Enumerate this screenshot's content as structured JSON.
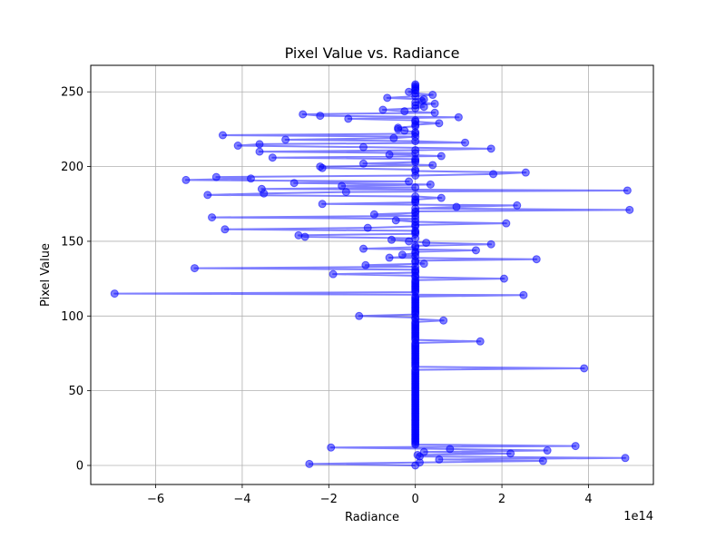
{
  "chart_data": {
    "type": "line",
    "title": "Pixel Value vs. Radiance",
    "xlabel": "Radiance",
    "ylabel": "Pixel Value",
    "x_offset_label": "1e14",
    "x_scale": 100000000000000.0,
    "xlim": [
      -7.5,
      5.5
    ],
    "ylim": [
      -12.75,
      267.75
    ],
    "x_ticks": [
      -6,
      -4,
      -2,
      0,
      2,
      4
    ],
    "x_tick_labels": [
      "−6",
      "−4",
      "−2",
      "0",
      "2",
      "4"
    ],
    "y_ticks": [
      0,
      50,
      100,
      150,
      200,
      250
    ],
    "y_tick_labels": [
      "0",
      "50",
      "100",
      "150",
      "200",
      "250"
    ],
    "grid": true,
    "legend": "none",
    "series": [
      {
        "color": "#0000ff",
        "marker": "circle",
        "points": [
          [
            0.0,
            0
          ],
          [
            -2.45,
            1
          ],
          [
            0.1,
            2
          ],
          [
            2.95,
            3
          ],
          [
            0.55,
            4
          ],
          [
            4.85,
            5
          ],
          [
            0.1,
            6
          ],
          [
            0.05,
            7
          ],
          [
            2.2,
            8
          ],
          [
            0.2,
            9
          ],
          [
            3.05,
            10
          ],
          [
            0.8,
            11
          ],
          [
            -1.95,
            12
          ],
          [
            3.7,
            13
          ],
          [
            0.0,
            14
          ],
          [
            0.0,
            15
          ],
          [
            0.0,
            16
          ],
          [
            0.0,
            17
          ],
          [
            0.0,
            18
          ],
          [
            0.0,
            19
          ],
          [
            0.0,
            20
          ],
          [
            0.0,
            21
          ],
          [
            0.0,
            22
          ],
          [
            0.0,
            23
          ],
          [
            0.0,
            24
          ],
          [
            0.0,
            25
          ],
          [
            0.0,
            26
          ],
          [
            0.0,
            27
          ],
          [
            0.0,
            28
          ],
          [
            0.0,
            29
          ],
          [
            0.0,
            30
          ],
          [
            0.0,
            31
          ],
          [
            0.0,
            32
          ],
          [
            0.0,
            33
          ],
          [
            0.0,
            34
          ],
          [
            0.0,
            35
          ],
          [
            0.0,
            36
          ],
          [
            0.0,
            37
          ],
          [
            0.0,
            38
          ],
          [
            0.0,
            39
          ],
          [
            0.0,
            40
          ],
          [
            0.0,
            41
          ],
          [
            0.0,
            42
          ],
          [
            0.0,
            43
          ],
          [
            0.0,
            44
          ],
          [
            0.0,
            45
          ],
          [
            0.0,
            46
          ],
          [
            0.0,
            47
          ],
          [
            0.0,
            48
          ],
          [
            0.0,
            49
          ],
          [
            0.0,
            50
          ],
          [
            0.0,
            51
          ],
          [
            0.0,
            52
          ],
          [
            0.0,
            53
          ],
          [
            0.0,
            54
          ],
          [
            0.0,
            55
          ],
          [
            0.0,
            56
          ],
          [
            0.0,
            57
          ],
          [
            0.0,
            58
          ],
          [
            0.0,
            59
          ],
          [
            0.0,
            60
          ],
          [
            0.0,
            61
          ],
          [
            0.0,
            62
          ],
          [
            0.0,
            63
          ],
          [
            0.0,
            64
          ],
          [
            3.9,
            65
          ],
          [
            0.0,
            66
          ],
          [
            0.0,
            67
          ],
          [
            0.0,
            68
          ],
          [
            0.0,
            69
          ],
          [
            0.0,
            70
          ],
          [
            0.0,
            71
          ],
          [
            0.0,
            72
          ],
          [
            0.0,
            73
          ],
          [
            0.0,
            74
          ],
          [
            0.0,
            75
          ],
          [
            0.0,
            76
          ],
          [
            0.0,
            77
          ],
          [
            0.0,
            78
          ],
          [
            0.0,
            79
          ],
          [
            0.0,
            80
          ],
          [
            0.0,
            81
          ],
          [
            0.0,
            82
          ],
          [
            1.5,
            83
          ],
          [
            0.0,
            84
          ],
          [
            0.0,
            85
          ],
          [
            0.0,
            86
          ],
          [
            0.0,
            87
          ],
          [
            0.0,
            88
          ],
          [
            0.0,
            89
          ],
          [
            0.0,
            90
          ],
          [
            0.0,
            91
          ],
          [
            0.0,
            92
          ],
          [
            0.0,
            93
          ],
          [
            0.0,
            94
          ],
          [
            0.0,
            95
          ],
          [
            0.0,
            96
          ],
          [
            0.65,
            97
          ],
          [
            0.0,
            98
          ],
          [
            0.0,
            99
          ],
          [
            -1.3,
            100
          ],
          [
            0.0,
            101
          ],
          [
            0.0,
            102
          ],
          [
            0.0,
            103
          ],
          [
            0.0,
            104
          ],
          [
            0.0,
            105
          ],
          [
            0.0,
            106
          ],
          [
            0.0,
            107
          ],
          [
            0.0,
            108
          ],
          [
            0.0,
            109
          ],
          [
            0.0,
            110
          ],
          [
            0.0,
            111
          ],
          [
            0.0,
            112
          ],
          [
            0.0,
            113
          ],
          [
            2.5,
            114
          ],
          [
            -6.95,
            115
          ],
          [
            0.0,
            116
          ],
          [
            0.0,
            117
          ],
          [
            0.0,
            118
          ],
          [
            0.0,
            119
          ],
          [
            0.0,
            120
          ],
          [
            0.0,
            121
          ],
          [
            0.0,
            122
          ],
          [
            0.0,
            123
          ],
          [
            0.0,
            124
          ],
          [
            2.05,
            125
          ],
          [
            0.0,
            126
          ],
          [
            0.0,
            127
          ],
          [
            -1.9,
            128
          ],
          [
            0.0,
            129
          ],
          [
            0.0,
            130
          ],
          [
            0.0,
            131
          ],
          [
            -5.1,
            132
          ],
          [
            0.0,
            133
          ],
          [
            -1.15,
            134
          ],
          [
            0.2,
            135
          ],
          [
            0.0,
            136
          ],
          [
            0.0,
            137
          ],
          [
            2.8,
            138
          ],
          [
            -0.6,
            139
          ],
          [
            0.0,
            140
          ],
          [
            -0.3,
            141
          ],
          [
            0.0,
            142
          ],
          [
            0.0,
            143
          ],
          [
            1.4,
            144
          ],
          [
            -1.2,
            145
          ],
          [
            0.0,
            146
          ],
          [
            0.0,
            147
          ],
          [
            1.75,
            148
          ],
          [
            0.25,
            149
          ],
          [
            -0.15,
            150
          ],
          [
            -0.55,
            151
          ],
          [
            0.0,
            152
          ],
          [
            -2.55,
            153
          ],
          [
            -2.7,
            154
          ],
          [
            0.0,
            155
          ],
          [
            0.0,
            156
          ],
          [
            0.0,
            157
          ],
          [
            -4.4,
            158
          ],
          [
            -1.1,
            159
          ],
          [
            0.0,
            160
          ],
          [
            0.0,
            161
          ],
          [
            2.1,
            162
          ],
          [
            0.0,
            163
          ],
          [
            -0.45,
            164
          ],
          [
            0.0,
            165
          ],
          [
            -4.7,
            166
          ],
          [
            0.0,
            167
          ],
          [
            -0.95,
            168
          ],
          [
            0.0,
            169
          ],
          [
            0.0,
            170
          ],
          [
            4.95,
            171
          ],
          [
            0.0,
            172
          ],
          [
            0.95,
            173
          ],
          [
            2.35,
            174
          ],
          [
            -2.15,
            175
          ],
          [
            0.0,
            176
          ],
          [
            0.0,
            177
          ],
          [
            0.0,
            178
          ],
          [
            0.6,
            179
          ],
          [
            0.0,
            180
          ],
          [
            -4.8,
            181
          ],
          [
            -3.5,
            182
          ],
          [
            -1.6,
            183
          ],
          [
            4.9,
            184
          ],
          [
            -3.55,
            185
          ],
          [
            0.0,
            186
          ],
          [
            -1.7,
            187
          ],
          [
            0.35,
            188
          ],
          [
            -2.8,
            189
          ],
          [
            -0.15,
            190
          ],
          [
            -5.3,
            191
          ],
          [
            -3.8,
            192
          ],
          [
            -4.6,
            193
          ],
          [
            0.0,
            194
          ],
          [
            1.8,
            195
          ],
          [
            2.55,
            196
          ],
          [
            0.0,
            197
          ],
          [
            0.0,
            198
          ],
          [
            -2.15,
            199
          ],
          [
            -2.2,
            200
          ],
          [
            0.4,
            201
          ],
          [
            -1.2,
            202
          ],
          [
            0.0,
            203
          ],
          [
            0.0,
            204
          ],
          [
            0.0,
            205
          ],
          [
            -3.3,
            206
          ],
          [
            0.6,
            207
          ],
          [
            -0.6,
            208
          ],
          [
            0.0,
            209
          ],
          [
            -3.6,
            210
          ],
          [
            0.0,
            211
          ],
          [
            1.75,
            212
          ],
          [
            -1.2,
            213
          ],
          [
            -4.1,
            214
          ],
          [
            -3.6,
            215
          ],
          [
            1.15,
            216
          ],
          [
            0.0,
            217
          ],
          [
            -3.0,
            218
          ],
          [
            -0.5,
            219
          ],
          [
            0.0,
            220
          ],
          [
            -4.45,
            221
          ],
          [
            0.0,
            222
          ],
          [
            0.0,
            223
          ],
          [
            -0.25,
            224
          ],
          [
            -0.4,
            225
          ],
          [
            -0.4,
            226
          ],
          [
            0.0,
            227
          ],
          [
            0.0,
            228
          ],
          [
            0.55,
            229
          ],
          [
            0.0,
            230
          ],
          [
            0.0,
            231
          ],
          [
            -1.55,
            232
          ],
          [
            1.0,
            233
          ],
          [
            -2.2,
            234
          ],
          [
            -2.6,
            235
          ],
          [
            0.45,
            236
          ],
          [
            -0.25,
            237
          ],
          [
            -0.75,
            238
          ],
          [
            0.0,
            239
          ],
          [
            0.2,
            240
          ],
          [
            0.0,
            241
          ],
          [
            0.45,
            242
          ],
          [
            0.0,
            243
          ],
          [
            0.15,
            244
          ],
          [
            0.2,
            245
          ],
          [
            -0.65,
            246
          ],
          [
            0.0,
            247
          ],
          [
            0.4,
            248
          ],
          [
            0.0,
            249
          ],
          [
            -0.15,
            250
          ],
          [
            0.0,
            251
          ],
          [
            0.0,
            252
          ],
          [
            0.0,
            253
          ],
          [
            0.0,
            254
          ],
          [
            0.0,
            255
          ]
        ]
      }
    ]
  }
}
